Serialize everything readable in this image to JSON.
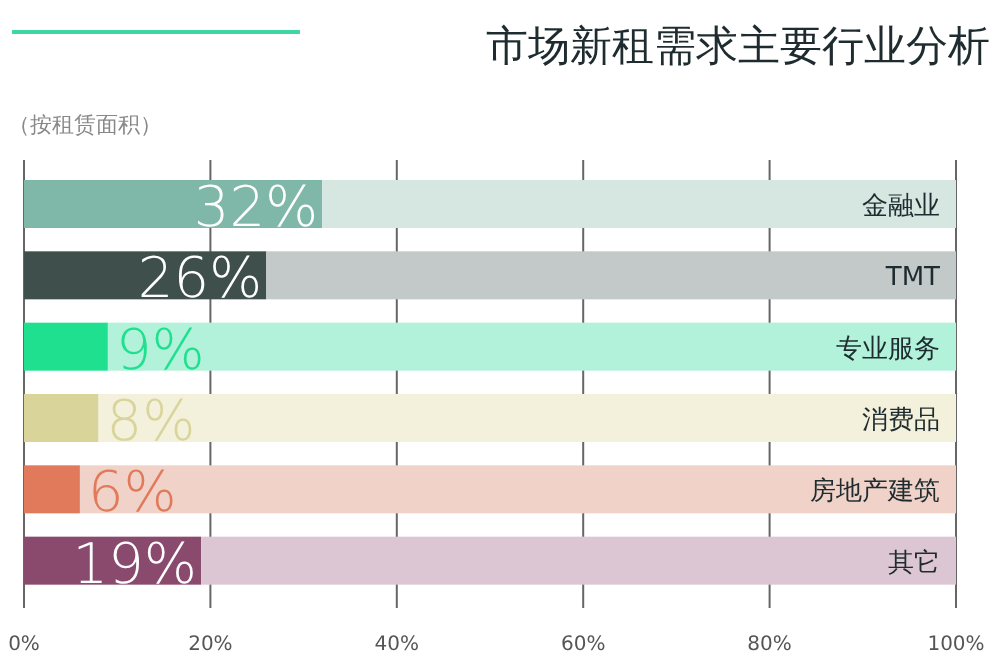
{
  "chart_data": {
    "type": "bar",
    "orientation": "horizontal",
    "stacked": true,
    "title": "市场新租需求主要行业分析",
    "subtitle": "（按租赁面积）",
    "categories": [
      "金融业",
      "TMT",
      "专业服务",
      "消费品",
      "房地产建筑",
      "其它"
    ],
    "series": [
      {
        "colors": [
          "#7fb8a8",
          "#3e4f4c",
          "#1fe08f",
          "#d8d49a",
          "#e07a5a",
          "#8a4a6e"
        ],
        "values": [
          32,
          26,
          9,
          8,
          6,
          19
        ],
        "value_labels": [
          "32%",
          "26%",
          "9%",
          "8%",
          "6%",
          "19%"
        ]
      },
      {
        "colors": [
          "#d6e7e2",
          "#c3c8c8",
          "#b2f2da",
          "#f3f1dc",
          "#f0d2c8",
          "#dcc6d4"
        ],
        "values": [
          68,
          74,
          91,
          92,
          94,
          81
        ]
      }
    ],
    "xlim": [
      0,
      100
    ],
    "xticks": [
      {
        "value": 0,
        "label": "0%"
      },
      {
        "value": 20,
        "label": "20%"
      },
      {
        "value": 40,
        "label": "40%"
      },
      {
        "value": 60,
        "label": "60%"
      },
      {
        "value": 80,
        "label": "80%"
      },
      {
        "value": 100,
        "label": "100%"
      }
    ],
    "grid": "x"
  }
}
